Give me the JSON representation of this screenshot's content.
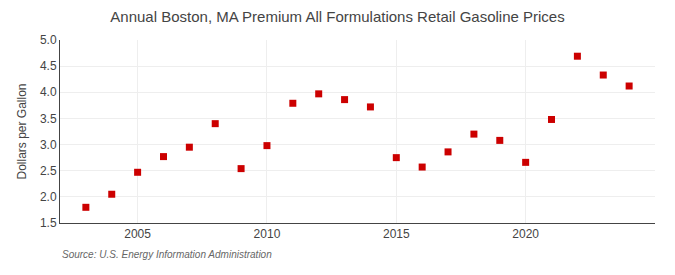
{
  "chart_data": {
    "type": "scatter",
    "title": "Annual Boston, MA Premium All Formulations Retail Gasoline Prices",
    "ylabel": "Dollars per Gallon",
    "annotations": [
      "Source: U.S. Energy Information Administration"
    ],
    "x": [
      2003,
      2004,
      2005,
      2006,
      2007,
      2008,
      2009,
      2010,
      2011,
      2012,
      2013,
      2014,
      2015,
      2016,
      2017,
      2018,
      2019,
      2020,
      2021,
      2022,
      2023,
      2024
    ],
    "values": [
      1.8,
      2.05,
      2.47,
      2.77,
      2.95,
      3.4,
      2.54,
      2.98,
      3.79,
      3.97,
      3.86,
      3.72,
      2.75,
      2.57,
      2.86,
      3.2,
      3.08,
      2.66,
      3.48,
      4.69,
      4.33,
      4.12
    ],
    "color": "#cc0000",
    "marker": "square",
    "xlim": [
      2002.0,
      2025.0
    ],
    "xticks": [
      2005,
      2010,
      2015,
      2020
    ],
    "ylim": [
      1.5,
      5.0
    ],
    "yticks": [
      1.5,
      {
        "value": 2.0,
        "label": "2.0"
      },
      2.5,
      {
        "value": 3.0,
        "label": "3.0"
      },
      3.5,
      {
        "value": 4.0,
        "label": "4.0"
      },
      4.5,
      {
        "value": 5.0,
        "label": "5.0"
      }
    ],
    "grid": true
  }
}
